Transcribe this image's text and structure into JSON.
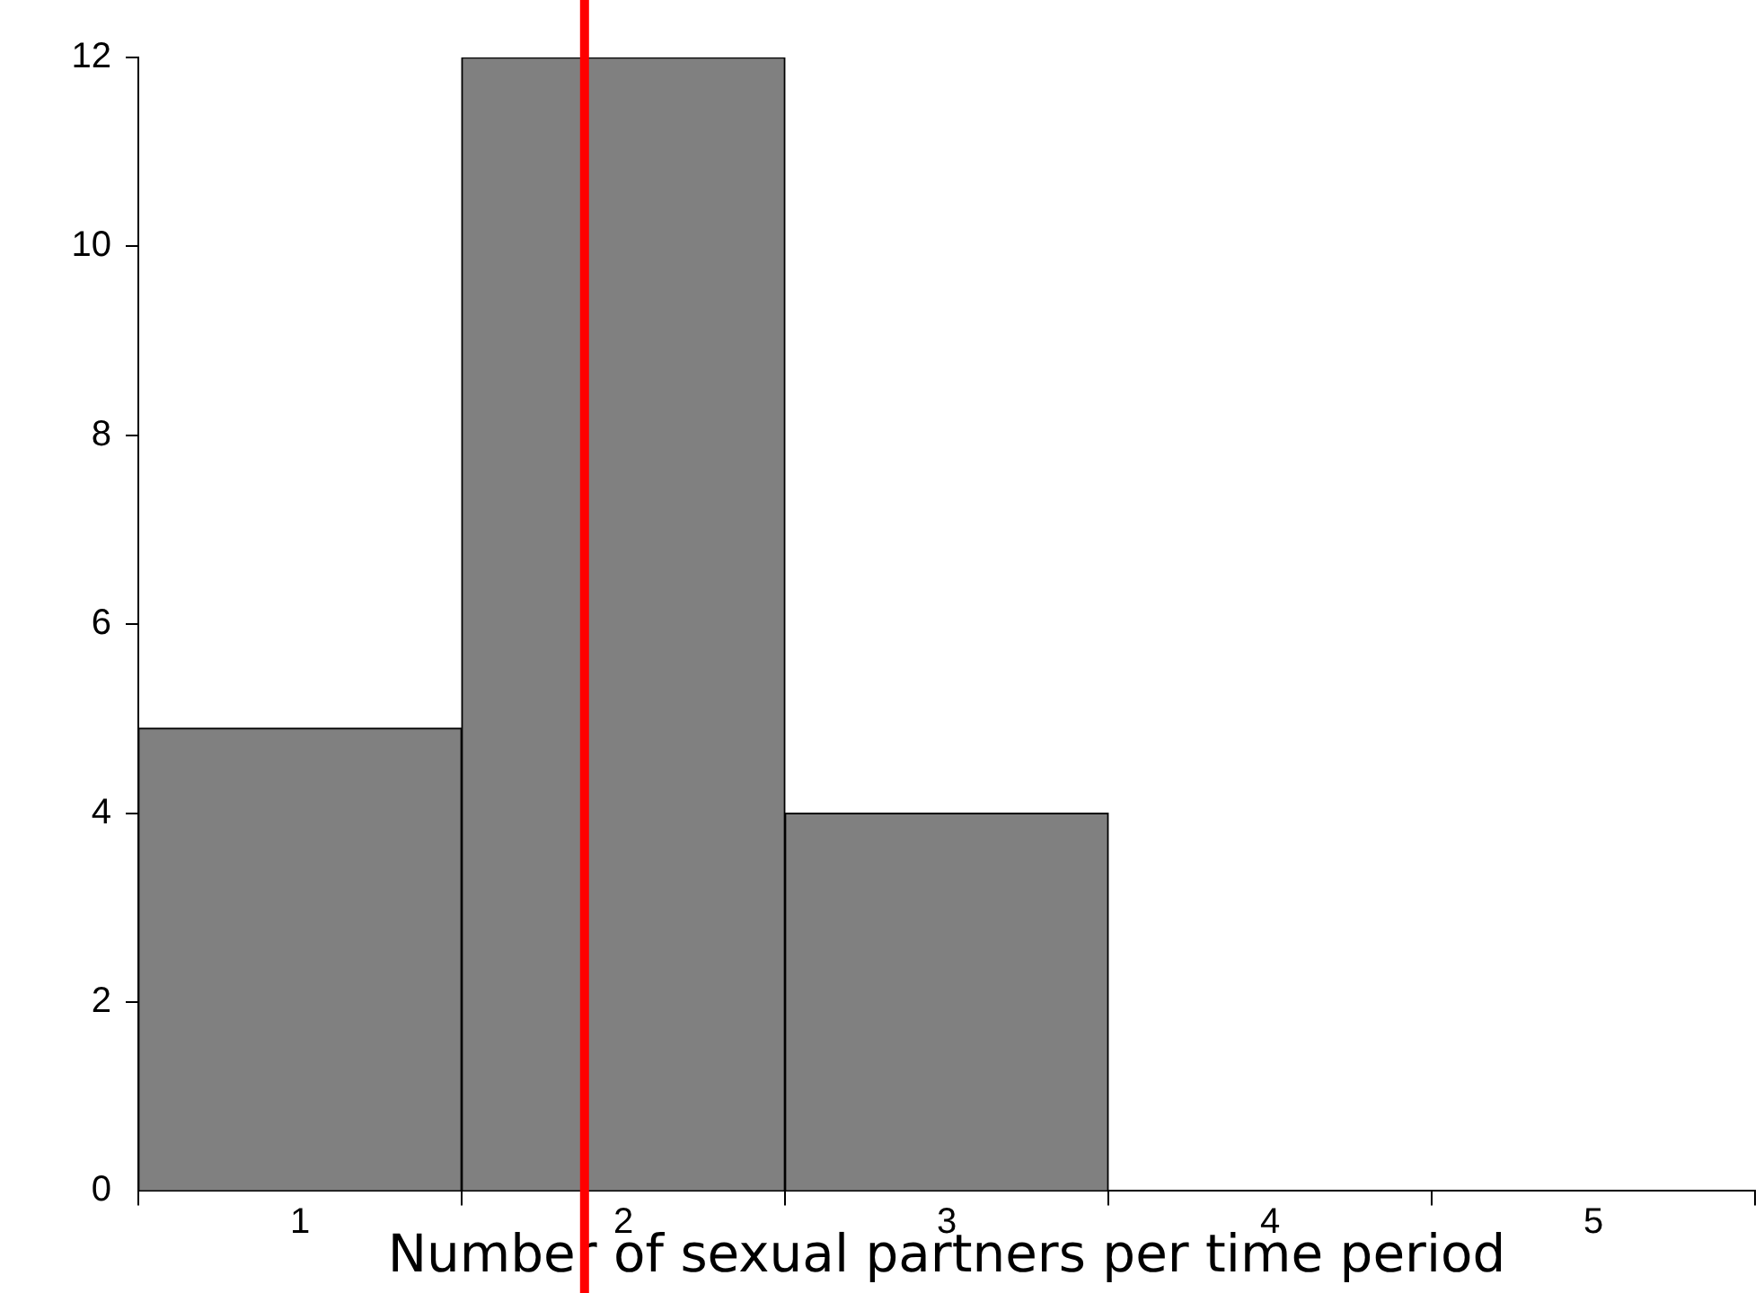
{
  "chart_data": {
    "type": "histogram",
    "xlabel": "Number of sexual partners per time period",
    "bins": [
      0.5,
      1.5,
      2.5,
      3.5,
      4.5,
      5.5
    ],
    "values": [
      4.9,
      12,
      4,
      0,
      0
    ],
    "color": "#808080",
    "xlim": [
      0.5,
      5.5
    ],
    "xticks": [
      {
        "value": 0.5,
        "label": null
      },
      1,
      {
        "value": 1.5,
        "label": null
      },
      2,
      {
        "value": 2.5,
        "label": null
      },
      3,
      {
        "value": 3.5,
        "label": null
      },
      4,
      {
        "value": 4.5,
        "label": null
      },
      5,
      {
        "value": 5.5,
        "label": null
      }
    ],
    "ylim": [
      0,
      12
    ],
    "yticks": [
      0,
      2,
      4,
      6,
      8,
      10,
      12
    ],
    "grid": false,
    "legend": false,
    "ref_lines": [
      {
        "axis": "x",
        "value": 1.88,
        "color": "#ff0000"
      }
    ]
  }
}
